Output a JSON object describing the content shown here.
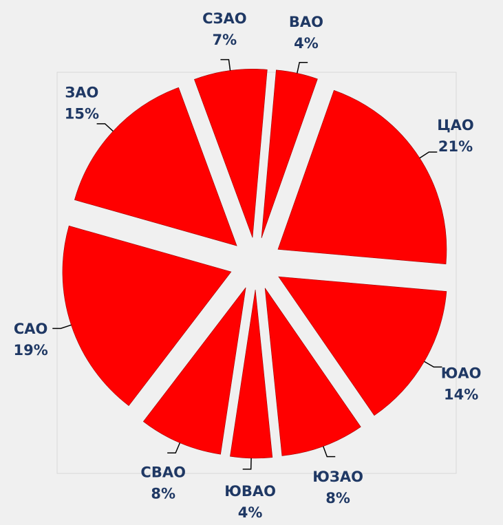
{
  "chart_data": {
    "type": "pie",
    "categories": [
      "ВАО",
      "ЦАО",
      "ЮАО",
      "ЮЗАО",
      "ЮВАО",
      "СВАО",
      "САО",
      "ЗАО",
      "СЗАО"
    ],
    "values": [
      4,
      21,
      14,
      8,
      4,
      8,
      19,
      15,
      7
    ],
    "value_labels": [
      "4%",
      "21%",
      "14%",
      "8%",
      "4%",
      "8%",
      "19%",
      "15%",
      "7%"
    ],
    "color": "#ff0000"
  }
}
